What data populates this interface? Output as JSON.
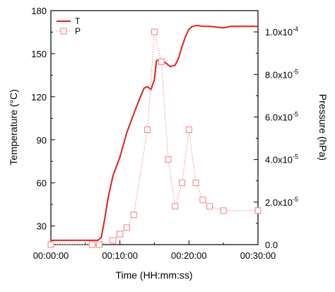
{
  "chart_data": {
    "type": "line",
    "xlabel": "Time (HH:mm:ss)",
    "ylabel": "Temperature (°C)",
    "y2label": "Pressure (hPa)",
    "xlim": [
      0,
      30
    ],
    "ylim": [
      17,
      180
    ],
    "y2lim": [
      0,
      0.00011
    ],
    "x_ticks": [
      0,
      10,
      20,
      30
    ],
    "x_tick_labels": [
      "00:00:00",
      "00:10:00",
      "00:20:00",
      "00:30:00"
    ],
    "y_ticks": [
      30,
      60,
      90,
      120,
      150,
      180
    ],
    "y_tick_labels": [
      "30",
      "60",
      "90",
      "120",
      "150",
      "180"
    ],
    "y2_ticks": [
      0,
      2e-05,
      4e-05,
      6e-05,
      8e-05,
      0.0001
    ],
    "y2_tick_labels": [
      {
        "base": "0.0",
        "exp": ""
      },
      {
        "base": "2.0x10",
        "exp": "-5"
      },
      {
        "base": "4.0x10",
        "exp": "-5"
      },
      {
        "base": "6.0x10",
        "exp": "-5"
      },
      {
        "base": "8.0x10",
        "exp": "-5"
      },
      {
        "base": "1.0x10",
        "exp": "-4"
      }
    ],
    "legend_position": "top-left",
    "series": [
      {
        "name": "T",
        "axis": "left",
        "color": "#e02020",
        "style": "solid",
        "marker": "none",
        "x": [
          0,
          6.2,
          6.8,
          7.3,
          7.8,
          8.3,
          9.0,
          10.0,
          11.0,
          12.0,
          12.8,
          13.5,
          14.0,
          14.5,
          15.0,
          15.3,
          15.8,
          16.5,
          17.3,
          18.0,
          18.5,
          19.0,
          19.5,
          20.0,
          20.5,
          21.0,
          21.5,
          22.0,
          23.0,
          24.0,
          25.0,
          26.0,
          27.0,
          28.0,
          29.0,
          30.0
        ],
        "y": [
          20,
          20,
          20,
          22,
          35,
          50,
          65,
          78,
          95,
          108,
          118,
          126,
          127,
          125,
          132,
          145,
          146,
          144,
          141,
          142,
          147,
          155,
          162,
          167,
          169,
          169.5,
          169.5,
          169,
          169,
          168.5,
          168,
          169,
          169,
          169,
          169,
          169
        ]
      },
      {
        "name": "P",
        "axis": "right",
        "color": "#f08080",
        "style": "dotted",
        "marker": "open-square",
        "x": [
          0,
          6,
          7,
          9,
          10,
          11,
          12,
          14,
          15,
          16,
          17,
          18,
          19,
          20,
          21,
          22,
          23,
          25,
          30
        ],
        "y": [
          0.0,
          0.0,
          0.0,
          2e-06,
          5e-06,
          8e-06,
          1.4e-05,
          5.4e-05,
          0.0001,
          8.6e-05,
          4e-05,
          1.8e-05,
          2.9e-05,
          5.4e-05,
          2.9e-05,
          2.1e-05,
          1.8e-05,
          1.6e-05,
          1.6e-05
        ]
      }
    ]
  }
}
